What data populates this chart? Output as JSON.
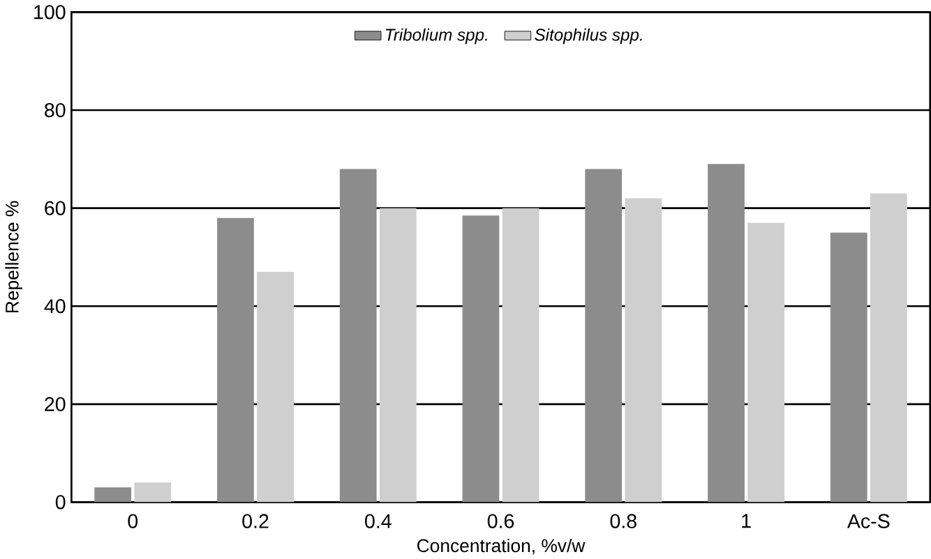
{
  "chart_data": {
    "type": "bar",
    "xlabel": "Concentration, %v/w",
    "ylabel": "Repellence %",
    "categories": [
      "0",
      "0.2",
      "0.4",
      "0.6",
      "0.8",
      "1",
      "Ac-S"
    ],
    "series": [
      {
        "name": "*Tribolium spp.*",
        "color": "#8c8c8c",
        "values": [
          3,
          58,
          68,
          58.5,
          68,
          69,
          55
        ]
      },
      {
        "name": "*Sitophilus spp.*",
        "color": "#cfcfcf",
        "values": [
          4,
          47,
          60,
          60,
          62,
          57,
          63
        ]
      }
    ],
    "ylim": [
      0,
      100
    ],
    "yticks": [
      0,
      20,
      40,
      60,
      80,
      100
    ],
    "grid": "y",
    "legend": "top"
  }
}
